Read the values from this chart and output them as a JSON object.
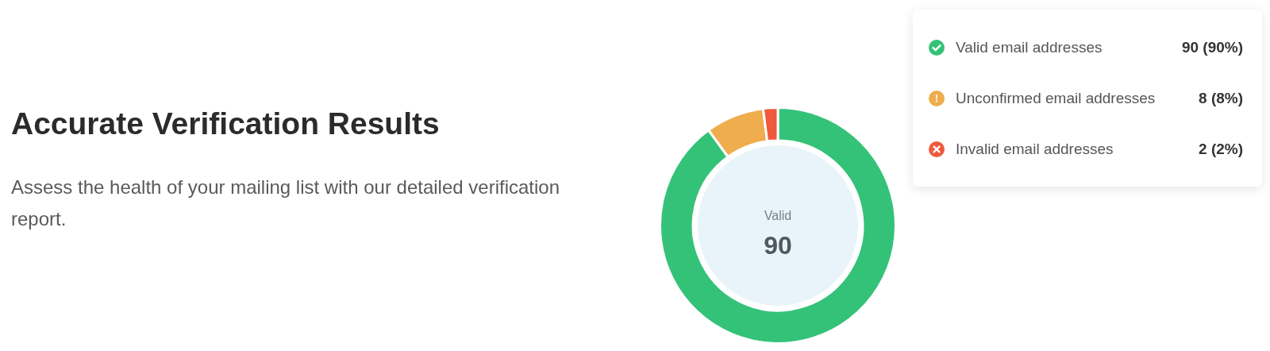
{
  "chart_data": {
    "type": "donut",
    "title": "Accurate Verification Results",
    "subtitle": "Assess the health of your mailing list with our detailed verification report.",
    "categories": [
      "Valid email addresses",
      "Unconfirmed email addresses",
      "Invalid email addresses"
    ],
    "values": [
      90,
      8,
      2
    ],
    "colors": [
      "#34c279",
      "#efad4d",
      "#ef5a3c"
    ],
    "value_labels": [
      "90 (90%)",
      "8 (8%)",
      "2 (2%)"
    ],
    "annotations": [
      "Valid",
      "90"
    ],
    "legend": "top right"
  }
}
